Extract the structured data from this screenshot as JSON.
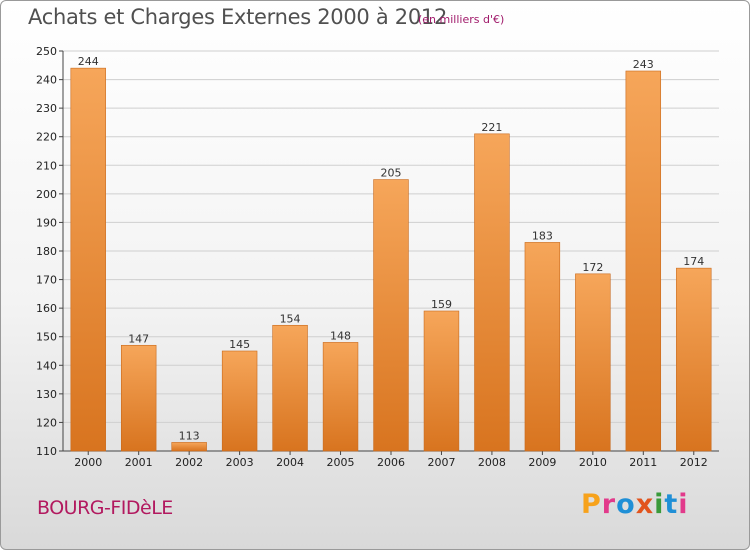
{
  "header": {
    "title": "Achats et Charges Externes 2000 à 2012",
    "unit": "(en milliers d'€)"
  },
  "footer": {
    "commune": "BOURG-FIDèLE",
    "logo_text": "Proxiti",
    "logo_colors": [
      "#f7a21b",
      "#e23a8b",
      "#1f8fd6",
      "#e2541d",
      "#3a9a3a",
      "#1f8fd6",
      "#e23a8b"
    ]
  },
  "colors": {
    "bar_light": "#f6a65a",
    "bar_dark": "#d8741f",
    "grid": "#cfcfcf"
  },
  "chart_data": {
    "type": "bar",
    "title": "Achats et Charges Externes 2000 à 2012",
    "subtitle": "(en milliers d'€)",
    "xlabel": "",
    "ylabel": "",
    "categories": [
      "2000",
      "2001",
      "2002",
      "2003",
      "2004",
      "2005",
      "2006",
      "2007",
      "2008",
      "2009",
      "2010",
      "2011",
      "2012"
    ],
    "values": [
      244,
      147,
      113,
      145,
      154,
      148,
      205,
      159,
      221,
      183,
      172,
      243,
      174
    ],
    "ylim": [
      110,
      250
    ],
    "yticks": [
      110,
      120,
      130,
      140,
      150,
      160,
      170,
      180,
      190,
      200,
      210,
      220,
      230,
      240,
      250
    ],
    "grid": true,
    "legend": "none"
  }
}
